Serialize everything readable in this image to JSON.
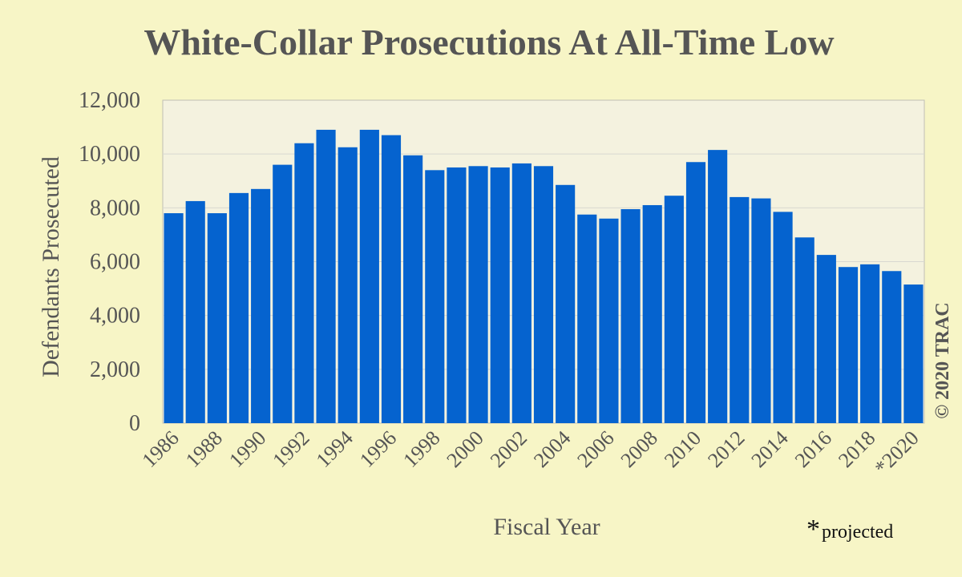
{
  "chart_data": {
    "type": "bar",
    "title": "White-Collar Prosecutions At All-Time Low",
    "xlabel": "Fiscal Year",
    "ylabel": "Defendants Prosecuted",
    "ylim": [
      0,
      12000
    ],
    "yticks": [
      "0",
      "2,000",
      "4,000",
      "6,000",
      "8,000",
      "10,000",
      "12,000"
    ],
    "ytick_values": [
      0,
      2000,
      4000,
      6000,
      8000,
      10000,
      12000
    ],
    "categories": [
      "1986",
      "1987",
      "1988",
      "1989",
      "1990",
      "1991",
      "1992",
      "1993",
      "1994",
      "1995",
      "1996",
      "1997",
      "1998",
      "1999",
      "2000",
      "2001",
      "2002",
      "2003",
      "2004",
      "2005",
      "2006",
      "2007",
      "2008",
      "2009",
      "2010",
      "2011",
      "2012",
      "2013",
      "2014",
      "2015",
      "2016",
      "2017",
      "2018",
      "2019",
      "2020"
    ],
    "xtick_labels": [
      "1986",
      "1988",
      "1990",
      "1992",
      "1994",
      "1996",
      "1998",
      "2000",
      "2002",
      "2004",
      "2006",
      "2008",
      "2010",
      "2012",
      "2014",
      "2016",
      "2018",
      "*2020"
    ],
    "values": [
      7800,
      8250,
      7800,
      8550,
      8700,
      9600,
      10400,
      10900,
      10250,
      10900,
      10700,
      9950,
      9400,
      9500,
      9550,
      9500,
      9650,
      9550,
      8850,
      7750,
      7600,
      7950,
      8100,
      8450,
      9700,
      10150,
      8400,
      8350,
      7850,
      6900,
      6250,
      5800,
      5900,
      5650,
      5150
    ],
    "grid": true,
    "colors": {
      "bar": "#0563cf",
      "plot_background": "#f4f2df",
      "page_background": "#f7f5c6",
      "gridline": "#d8d8d0",
      "text": "#555555"
    }
  },
  "copyright": "© 2020 TRAC",
  "footnote": {
    "star": "*",
    "text": "projected"
  }
}
